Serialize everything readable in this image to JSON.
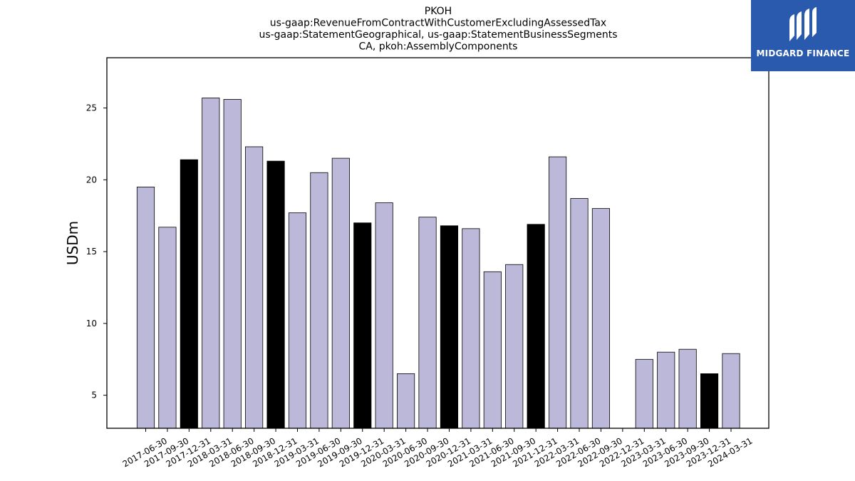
{
  "chart_data": {
    "type": "bar",
    "title_lines": [
      "PKOH",
      "us-gaap:RevenueFromContractWithCustomerExcludingAssessedTax",
      "us-gaap:StatementGeographical, us-gaap:StatementBusinessSegments",
      "CA, pkoh:AssemblyComponents"
    ],
    "ylabel": "USDm",
    "ylim": [
      2.7,
      28.5
    ],
    "yticks": [
      5,
      10,
      15,
      20,
      25
    ],
    "categories": [
      "2017-06-30",
      "2017-09-30",
      "2017-12-31",
      "2018-03-31",
      "2018-06-30",
      "2018-09-30",
      "2018-12-31",
      "2019-03-31",
      "2019-06-30",
      "2019-09-30",
      "2019-12-31",
      "2020-03-31",
      "2020-06-30",
      "2020-09-30",
      "2020-12-31",
      "2021-03-31",
      "2021-06-30",
      "2021-09-30",
      "2021-12-31",
      "2022-03-31",
      "2022-06-30",
      "2022-09-30",
      "2022-12-31",
      "2023-03-31",
      "2023-06-30",
      "2023-09-30",
      "2023-12-31",
      "2024-03-31"
    ],
    "values": [
      19.5,
      16.7,
      21.4,
      25.7,
      25.6,
      22.3,
      21.3,
      17.7,
      20.5,
      21.5,
      17.0,
      18.4,
      6.5,
      17.4,
      16.8,
      16.6,
      13.6,
      14.1,
      16.9,
      21.6,
      18.7,
      18.0,
      null,
      7.5,
      8.0,
      8.2,
      6.5,
      7.9
    ],
    "bar_color": "#bcb8d9",
    "highlight_color": "#000000",
    "highlight_categories": [
      "2017-12-31",
      "2018-12-31",
      "2019-12-31",
      "2020-12-31",
      "2021-12-31",
      "2023-12-31"
    ],
    "grid": false
  },
  "logo": {
    "text": "MIDGARD FINANCE",
    "color": "#2a5aad"
  }
}
